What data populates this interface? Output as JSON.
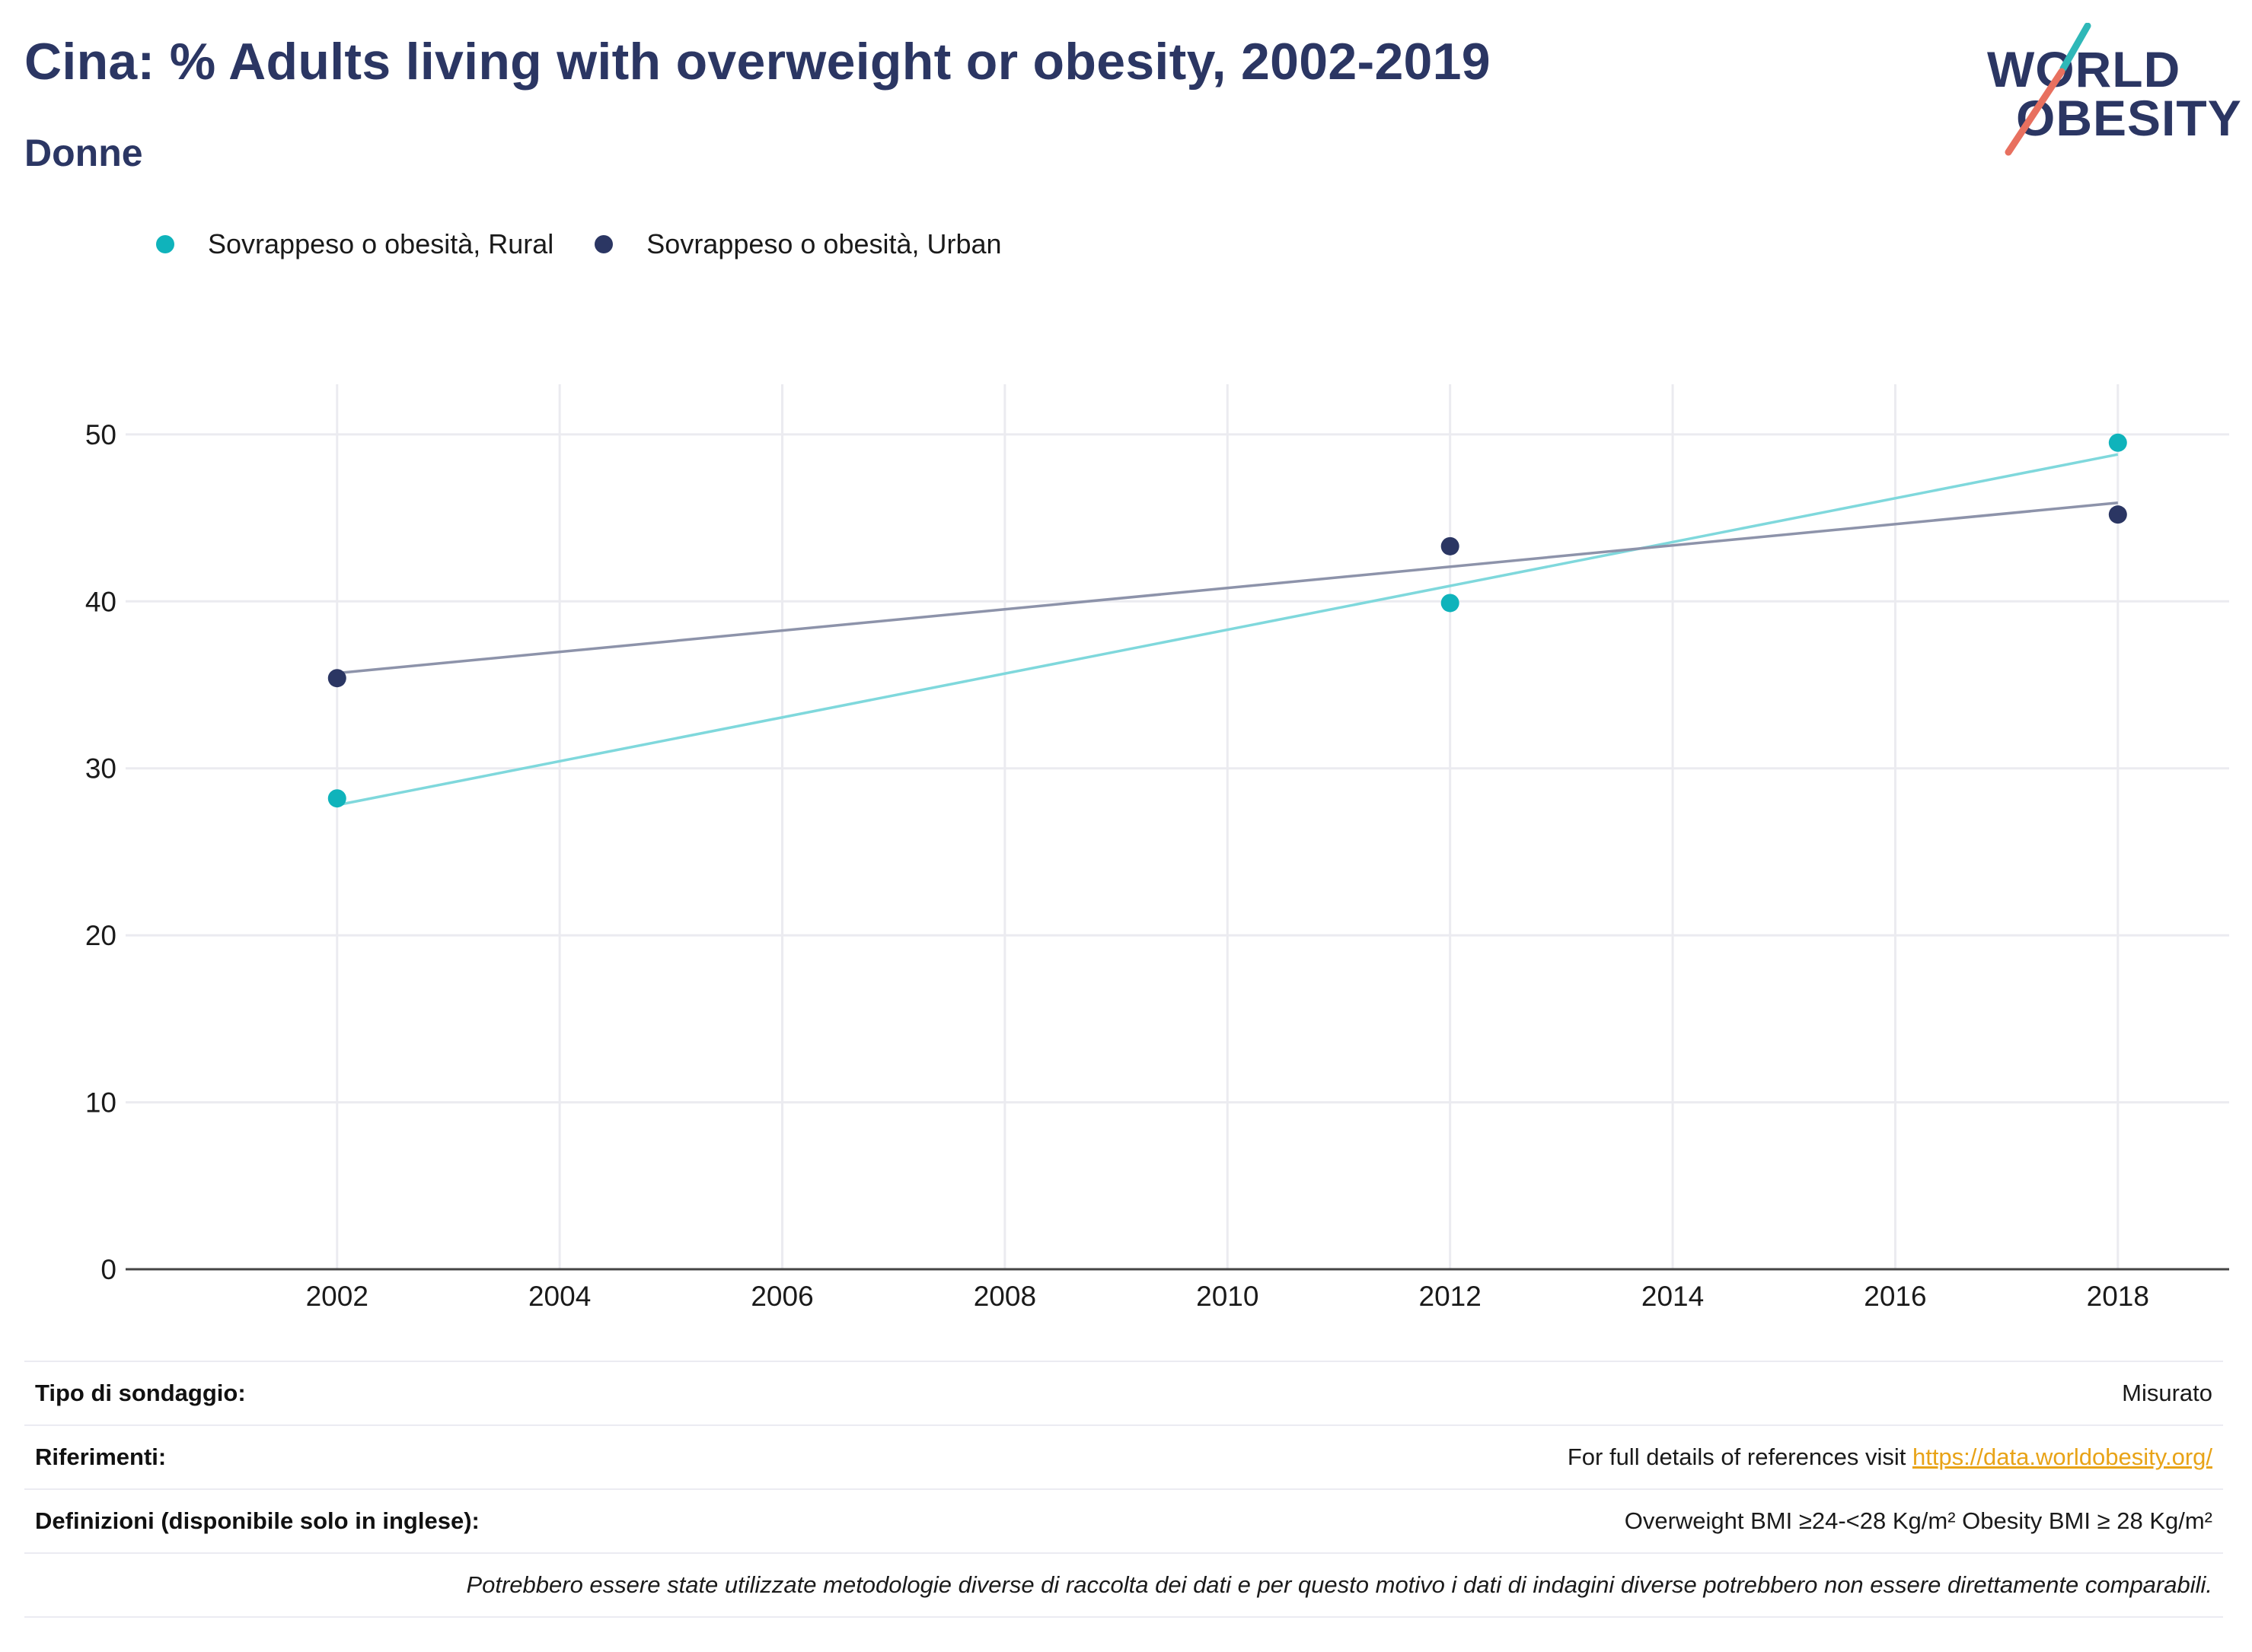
{
  "header": {
    "title": "Cina: % Adults living with overweight or obesity, 2002-2019",
    "subtitle": "Donne"
  },
  "logo": {
    "line1": "WORLD",
    "line2": "OBESITY"
  },
  "colors": {
    "rural": "#0fb3bb",
    "urban": "#2b3663",
    "rural_trend": "#7fd8dc",
    "urban_trend": "#8d93aa",
    "link": "#e8a317",
    "title": "#2b3663"
  },
  "legend": {
    "rural": "Sovrappeso o obesità, Rural",
    "urban": "Sovrappeso o obesità, Urban"
  },
  "chart_data": {
    "type": "scatter",
    "title": "Cina: % Adults living with overweight or obesity, 2002-2019",
    "xlabel": "",
    "ylabel": "",
    "xlim": [
      2000.1,
      2019.0
    ],
    "ylim": [
      0,
      53
    ],
    "x_ticks": [
      2002,
      2004,
      2006,
      2008,
      2010,
      2012,
      2014,
      2016,
      2018
    ],
    "y_ticks": [
      0,
      10,
      20,
      30,
      40,
      50
    ],
    "grid": true,
    "legend_position": "top-left",
    "series": [
      {
        "name": "Sovrappeso o obesità, Rural",
        "x": [
          2002,
          2012,
          2018
        ],
        "y": [
          28.2,
          39.9,
          49.5
        ],
        "trend": {
          "x": [
            2002,
            2018
          ],
          "y": [
            27.8,
            48.8
          ]
        }
      },
      {
        "name": "Sovrappeso o obesità, Urban",
        "x": [
          2002,
          2012,
          2018
        ],
        "y": [
          35.4,
          43.3,
          45.2
        ],
        "trend": {
          "x": [
            2002,
            2018
          ],
          "y": [
            35.7,
            45.9
          ]
        }
      }
    ]
  },
  "info": {
    "survey_type_label": "Tipo di sondaggio:",
    "survey_type_value": "Misurato",
    "references_label": "Riferimenti:",
    "references_text": "For full details of references visit ",
    "references_link": "https://data.worldobesity.org/",
    "definitions_label": "Definizioni (disponibile solo in inglese):",
    "definitions_value": "Overweight BMI ≥24-<28 Kg/m² Obesity BMI ≥ 28 Kg/m²",
    "note": "Potrebbero essere state utilizzate metodologie diverse di raccolta dei dati e per questo motivo i dati di indagini diverse potrebbero non essere direttamente comparabili."
  }
}
